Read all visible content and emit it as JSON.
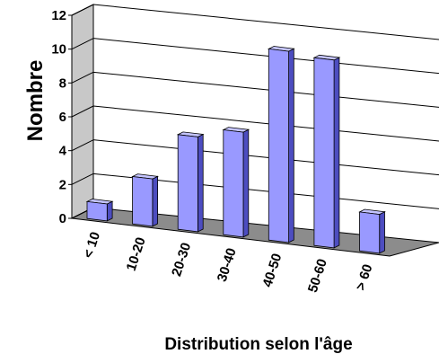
{
  "chart_data": {
    "type": "bar",
    "style": "3d-column",
    "categories": [
      "< 10",
      "10-20",
      "20-30",
      "30-40",
      "40-50",
      "50-60",
      "> 60"
    ],
    "values": [
      1,
      2.8,
      5.6,
      6.2,
      11.3,
      11.1,
      2.3
    ],
    "xlabel": "Distribution selon l'âge",
    "ylabel": "Nombre",
    "ylim": [
      0,
      12
    ],
    "yticks": [
      "0",
      "2",
      "4",
      "6",
      "8",
      "10",
      "12"
    ],
    "grid": true,
    "legend": "none",
    "colors": {
      "bar_front": "#9999ff",
      "bar_top": "#c4c4ff",
      "bar_side": "#4d4dc0",
      "floor": "#8c8c8c",
      "wall": "#c8c8c8",
      "grid": "#000000"
    }
  }
}
